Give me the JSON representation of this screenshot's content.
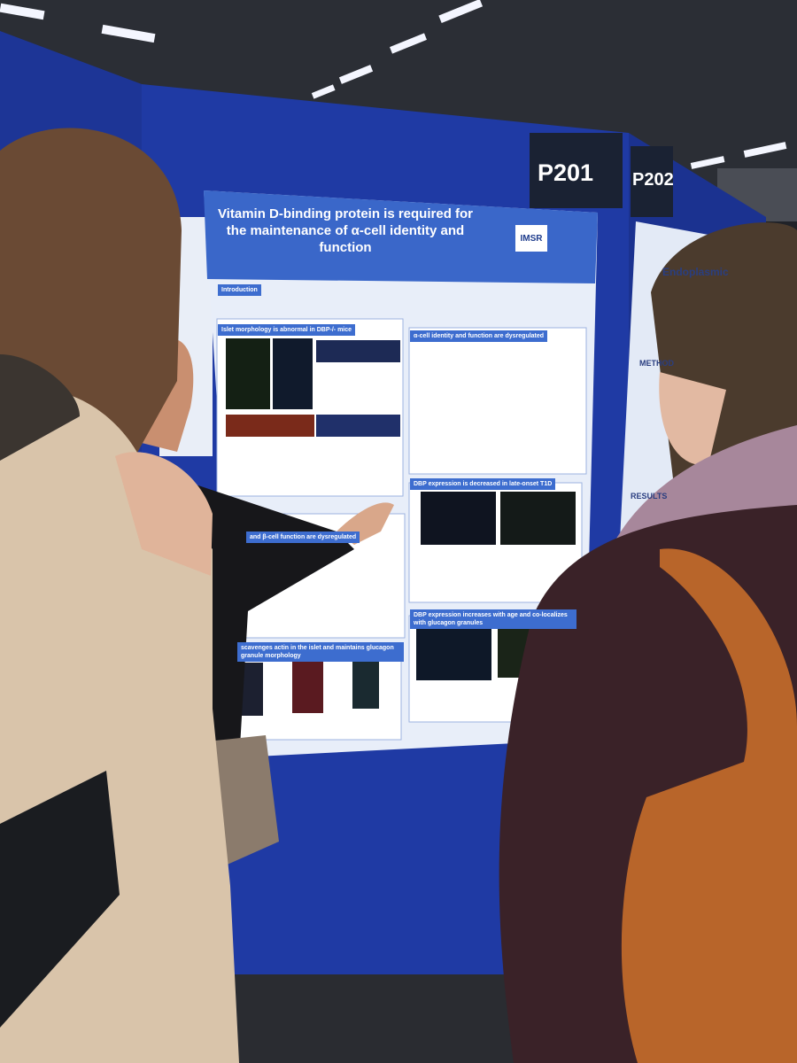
{
  "scene": {
    "booth_labels": [
      "P201",
      "P202"
    ],
    "poster": {
      "title": "Vitamin D-binding protein is required for the maintenance of α-cell identity and function",
      "logos": [
        "IMSR"
      ],
      "sections": [
        "Introduction",
        "Islet morphology is abnormal in DBP-/- mice",
        "α-cell identity and function are dysregulated",
        "DBP expression is decreased in late-onset T1D",
        "and β-cell function are dysregulated",
        "DBP expression increases with age and co-localizes with glucagon granules",
        "scavenges actin in the islet and maintains glucagon granule morphology"
      ]
    },
    "side_poster": {
      "title": "Endoplasmic",
      "headings": [
        "METHOD",
        "RESULTS"
      ]
    }
  }
}
